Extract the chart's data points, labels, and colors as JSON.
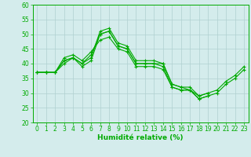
{
  "title": "",
  "xlabel": "Humidité relative (%)",
  "ylabel": "",
  "bg_color": "#d4ecec",
  "grid_color": "#b0d0d0",
  "line_color": "#00aa00",
  "xlim": [
    -0.5,
    23.5
  ],
  "ylim": [
    20,
    60
  ],
  "yticks": [
    20,
    25,
    30,
    35,
    40,
    45,
    50,
    55,
    60
  ],
  "xticks": [
    0,
    1,
    2,
    3,
    4,
    5,
    6,
    7,
    8,
    9,
    10,
    11,
    12,
    13,
    14,
    15,
    16,
    17,
    18,
    19,
    20,
    21,
    22,
    23
  ],
  "series": [
    [
      37,
      37,
      37,
      41,
      42,
      40,
      42,
      51,
      52,
      47,
      46,
      41,
      41,
      41,
      40,
      33,
      32,
      32,
      29,
      30,
      null,
      null,
      null,
      null
    ],
    [
      37,
      37,
      37,
      40,
      42,
      39,
      41,
      50,
      51,
      46,
      45,
      40,
      40,
      40,
      39,
      32,
      31,
      31,
      28,
      29,
      null,
      null,
      null,
      null
    ],
    [
      37,
      37,
      37,
      41,
      42,
      40,
      43,
      50,
      51,
      46,
      45,
      40,
      40,
      40,
      40,
      33,
      32,
      31,
      29,
      30,
      31,
      34,
      36,
      39
    ],
    [
      37,
      37,
      37,
      42,
      43,
      41,
      44,
      48,
      49,
      45,
      44,
      39,
      39,
      39,
      38,
      32,
      31,
      31,
      28,
      29,
      30,
      33,
      35,
      38
    ]
  ]
}
